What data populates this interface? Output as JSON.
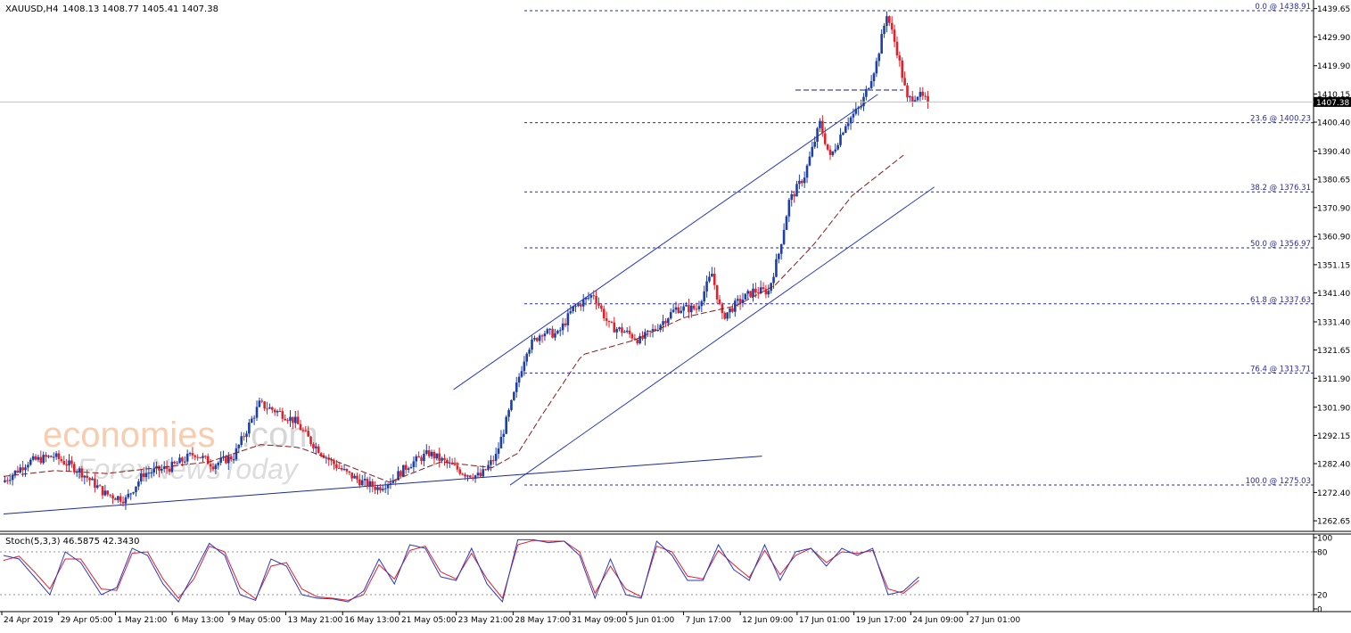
{
  "header": {
    "symbol": "XAUUSD,H4",
    "ohlc": "1408.13 1408.77 1405.41 1407.38"
  },
  "watermark": {
    "brand": "economies",
    "brand_suffix": ".com",
    "sub": "ForexNewsToday"
  },
  "colors": {
    "bull": "#1d3fa8",
    "bear": "#e0202a",
    "ma": "#8b1a1a",
    "channel": "#2a37c8",
    "fib": "#2a2aa0",
    "stoch_main": "#2a37c8",
    "stoch_signal": "#e0202a",
    "axis_text": "#000000",
    "brand": "#f2a36b"
  },
  "stoch": {
    "label": "Stoch(5,3,3) 46.5875 42.3430",
    "levels": [
      "100",
      "80",
      "20",
      "0"
    ]
  },
  "chart_data": {
    "type": "candlestick",
    "symbol": "XAUUSD",
    "timeframe": "H4",
    "current_price": 1407.38,
    "current_price_label": "1407.38",
    "ylim": [
      1259.0,
      1442.0
    ],
    "y_ticks": [
      "1439.65",
      "1429.90",
      "1419.90",
      "1410.15",
      "1400.40",
      "1390.40",
      "1380.65",
      "1370.90",
      "1360.90",
      "1351.15",
      "1341.40",
      "1331.40",
      "1321.65",
      "1311.90",
      "1301.90",
      "1292.15",
      "1282.40",
      "1272.40",
      "1262.65"
    ],
    "x_ticks": [
      "24 Apr 2019",
      "29 Apr 05:00",
      "1 May 21:00",
      "6 May 13:00",
      "9 May 05:00",
      "13 May 21:00",
      "16 May 13:00",
      "21 May 05:00",
      "23 May 21:00",
      "28 May 17:00",
      "31 May 09:00",
      "5 Jun 01:00",
      "7 Jun 17:00",
      "12 Jun 09:00",
      "17 Jun 01:00",
      "19 Jun 17:00",
      "24 Jun 09:00",
      "27 Jun 01:00"
    ],
    "fib_levels": [
      {
        "label": "0.0 @ 1438.91",
        "price": 1438.91
      },
      {
        "label": "23.6 @ 1400.23",
        "price": 1400.23
      },
      {
        "label": "38.2 @ 1376.31",
        "price": 1376.31
      },
      {
        "label": "50.0 @ 1356.97",
        "price": 1356.97
      },
      {
        "label": "61.8 @ 1337.63",
        "price": 1337.63
      },
      {
        "label": "76.4 @ 1313.71",
        "price": 1313.71
      },
      {
        "label": "100.0 @ 1275.03",
        "price": 1275.03
      }
    ],
    "close_series_anchors": [
      [
        0,
        1276
      ],
      [
        10,
        1283
      ],
      [
        20,
        1285
      ],
      [
        30,
        1280
      ],
      [
        40,
        1272
      ],
      [
        48,
        1270
      ],
      [
        55,
        1279
      ],
      [
        65,
        1281
      ],
      [
        75,
        1286
      ],
      [
        82,
        1282
      ],
      [
        90,
        1285
      ],
      [
        100,
        1303
      ],
      [
        108,
        1300
      ],
      [
        114,
        1297
      ],
      [
        120,
        1290
      ],
      [
        128,
        1283
      ],
      [
        134,
        1279
      ],
      [
        140,
        1276
      ],
      [
        146,
        1274
      ],
      [
        152,
        1277
      ],
      [
        158,
        1282
      ],
      [
        166,
        1286
      ],
      [
        172,
        1283
      ],
      [
        180,
        1279
      ],
      [
        186,
        1278
      ],
      [
        192,
        1285
      ],
      [
        198,
        1303
      ],
      [
        204,
        1322
      ],
      [
        210,
        1328
      ],
      [
        216,
        1327
      ],
      [
        222,
        1336
      ],
      [
        230,
        1341
      ],
      [
        236,
        1330
      ],
      [
        242,
        1328
      ],
      [
        248,
        1325
      ],
      [
        254,
        1329
      ],
      [
        262,
        1336
      ],
      [
        270,
        1336
      ],
      [
        276,
        1348
      ],
      [
        280,
        1333
      ],
      [
        286,
        1338
      ],
      [
        292,
        1342
      ],
      [
        298,
        1342
      ],
      [
        302,
        1355
      ],
      [
        306,
        1373
      ],
      [
        312,
        1382
      ],
      [
        318,
        1400
      ],
      [
        322,
        1388
      ],
      [
        328,
        1400
      ],
      [
        334,
        1406
      ],
      [
        340,
        1421
      ],
      [
        344,
        1438
      ],
      [
        348,
        1425
      ],
      [
        352,
        1408
      ],
      [
        356,
        1410
      ],
      [
        360,
        1407.38
      ]
    ],
    "ma_series_anchors": [
      [
        0,
        1278
      ],
      [
        20,
        1280
      ],
      [
        40,
        1279
      ],
      [
        60,
        1281
      ],
      [
        80,
        1283
      ],
      [
        100,
        1289
      ],
      [
        115,
        1288
      ],
      [
        130,
        1283
      ],
      [
        150,
        1276
      ],
      [
        170,
        1283
      ],
      [
        190,
        1281
      ],
      [
        200,
        1286
      ],
      [
        210,
        1300
      ],
      [
        225,
        1320
      ],
      [
        245,
        1325
      ],
      [
        265,
        1333
      ],
      [
        285,
        1337
      ],
      [
        300,
        1344
      ],
      [
        315,
        1358
      ],
      [
        330,
        1375
      ],
      [
        340,
        1382
      ],
      [
        350,
        1389
      ]
    ],
    "channel_lines": [
      {
        "name": "upper",
        "from": [
          175,
          1308.0
        ],
        "to": [
          340,
          1410.0
        ]
      },
      {
        "name": "lower",
        "from": [
          197,
          1275.0
        ],
        "to": [
          362,
          1378.0
        ]
      },
      {
        "name": "base",
        "from": [
          0,
          1265.0
        ],
        "to": [
          295,
          1285.0
        ]
      }
    ],
    "resistance_line": {
      "from": [
        308,
        1411.5
      ],
      "to": [
        350,
        1411.5
      ]
    },
    "stoch_main_anchors": [
      [
        0,
        75
      ],
      [
        6,
        70
      ],
      [
        12,
        45
      ],
      [
        18,
        20
      ],
      [
        24,
        80
      ],
      [
        30,
        65
      ],
      [
        38,
        20
      ],
      [
        44,
        30
      ],
      [
        50,
        85
      ],
      [
        56,
        75
      ],
      [
        62,
        35
      ],
      [
        68,
        10
      ],
      [
        74,
        50
      ],
      [
        80,
        92
      ],
      [
        86,
        75
      ],
      [
        92,
        20
      ],
      [
        98,
        12
      ],
      [
        104,
        70
      ],
      [
        110,
        60
      ],
      [
        116,
        20
      ],
      [
        122,
        15
      ],
      [
        128,
        14
      ],
      [
        134,
        10
      ],
      [
        140,
        25
      ],
      [
        146,
        70
      ],
      [
        152,
        35
      ],
      [
        158,
        90
      ],
      [
        164,
        85
      ],
      [
        170,
        45
      ],
      [
        176,
        40
      ],
      [
        182,
        85
      ],
      [
        188,
        35
      ],
      [
        194,
        10
      ],
      [
        200,
        97
      ],
      [
        206,
        97
      ],
      [
        212,
        93
      ],
      [
        218,
        95
      ],
      [
        224,
        75
      ],
      [
        230,
        15
      ],
      [
        236,
        70
      ],
      [
        242,
        20
      ],
      [
        248,
        15
      ],
      [
        254,
        95
      ],
      [
        260,
        75
      ],
      [
        266,
        40
      ],
      [
        272,
        40
      ],
      [
        278,
        90
      ],
      [
        284,
        55
      ],
      [
        290,
        40
      ],
      [
        296,
        90
      ],
      [
        302,
        40
      ],
      [
        308,
        80
      ],
      [
        314,
        85
      ],
      [
        320,
        60
      ],
      [
        326,
        85
      ],
      [
        332,
        75
      ],
      [
        338,
        85
      ],
      [
        344,
        20
      ],
      [
        350,
        25
      ],
      [
        356,
        45
      ]
    ],
    "stoch_signal_anchors": [
      [
        0,
        68
      ],
      [
        6,
        74
      ],
      [
        12,
        52
      ],
      [
        18,
        28
      ],
      [
        24,
        70
      ],
      [
        30,
        70
      ],
      [
        38,
        28
      ],
      [
        44,
        26
      ],
      [
        50,
        78
      ],
      [
        56,
        80
      ],
      [
        62,
        42
      ],
      [
        68,
        15
      ],
      [
        74,
        42
      ],
      [
        80,
        88
      ],
      [
        86,
        80
      ],
      [
        92,
        30
      ],
      [
        98,
        14
      ],
      [
        104,
        60
      ],
      [
        110,
        65
      ],
      [
        116,
        28
      ],
      [
        122,
        17
      ],
      [
        128,
        15
      ],
      [
        134,
        12
      ],
      [
        140,
        20
      ],
      [
        146,
        62
      ],
      [
        152,
        42
      ],
      [
        158,
        82
      ],
      [
        164,
        88
      ],
      [
        170,
        52
      ],
      [
        176,
        42
      ],
      [
        182,
        78
      ],
      [
        188,
        42
      ],
      [
        194,
        15
      ],
      [
        200,
        90
      ],
      [
        206,
        96
      ],
      [
        212,
        95
      ],
      [
        218,
        95
      ],
      [
        224,
        80
      ],
      [
        230,
        22
      ],
      [
        236,
        60
      ],
      [
        242,
        28
      ],
      [
        248,
        17
      ],
      [
        254,
        88
      ],
      [
        260,
        80
      ],
      [
        266,
        46
      ],
      [
        272,
        42
      ],
      [
        278,
        82
      ],
      [
        284,
        62
      ],
      [
        290,
        44
      ],
      [
        296,
        82
      ],
      [
        302,
        48
      ],
      [
        308,
        75
      ],
      [
        314,
        85
      ],
      [
        320,
        65
      ],
      [
        326,
        80
      ],
      [
        332,
        78
      ],
      [
        338,
        82
      ],
      [
        344,
        28
      ],
      [
        350,
        22
      ],
      [
        356,
        40
      ]
    ]
  }
}
